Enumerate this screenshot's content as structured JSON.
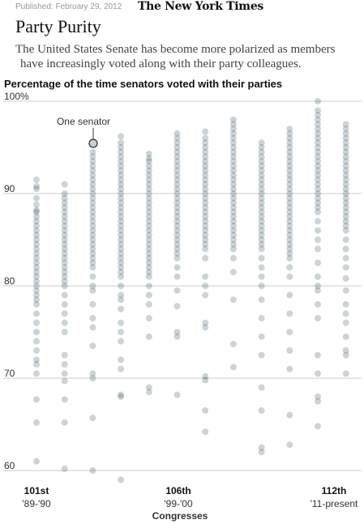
{
  "header": {
    "published": "Published: February 29, 2012",
    "masthead": "The New York Times"
  },
  "headline": "Party Purity",
  "description": {
    "line1": "The United States Senate has become more polarized as members",
    "line2": "have increasingly voted along  with their party colleagues."
  },
  "chart_title": "Percentage of the time senators voted with their parties",
  "annotation": "One senator",
  "colors": {
    "dot": "#1c3a4a",
    "grid": "#cccccc",
    "text": "#333333"
  },
  "chart_data": {
    "type": "scatter",
    "title": "Percentage of the time senators voted with their parties",
    "xlabel": "Congresses",
    "ylabel": "",
    "y_ticks": [
      "100%",
      "90",
      "80",
      "70",
      "60"
    ],
    "ylim": [
      60,
      100
    ],
    "grid": true,
    "x_labels": [
      {
        "congress": "101st",
        "years": "'89-'90"
      },
      {
        "congress": "106th",
        "years": "'99-'00"
      },
      {
        "congress": "112th",
        "years": "'11-present"
      }
    ],
    "series": [
      {
        "congress": 101,
        "values": [
          91.5,
          90.8,
          90.5,
          89.5,
          88.8,
          88.2,
          88.0,
          87.5,
          87.0,
          86.5,
          86.0,
          85.5,
          85.0,
          84.5,
          84.0,
          83.5,
          83.0,
          82.5,
          82.0,
          81.5,
          81.0,
          80.5,
          80.0,
          79.5,
          79.0,
          78.5,
          78.0,
          77.0,
          76.0,
          75.0,
          74.0,
          73.0,
          72.0,
          71.5,
          70.5,
          67.7,
          65.2,
          61.0
        ]
      },
      {
        "congress": 102,
        "values": [
          91.0,
          90.0,
          89.5,
          89.0,
          88.5,
          88.0,
          87.5,
          87.0,
          86.5,
          86.0,
          85.5,
          85.0,
          84.5,
          84.0,
          83.5,
          83.0,
          82.5,
          82.0,
          81.5,
          81.0,
          80.5,
          80.0,
          79.0,
          78.0,
          77.0,
          76.0,
          75.0,
          72.5,
          71.5,
          70.5,
          69.7,
          67.7,
          65.2,
          60.2
        ]
      },
      {
        "congress": 103,
        "values": [
          95.5,
          94.5,
          94.0,
          93.5,
          93.0,
          92.5,
          92.0,
          91.5,
          91.0,
          90.5,
          90.0,
          89.5,
          89.0,
          88.5,
          88.0,
          87.5,
          87.0,
          86.5,
          86.0,
          85.5,
          85.0,
          84.5,
          84.0,
          83.5,
          83.0,
          82.5,
          82.0,
          81.0,
          80.0,
          79.5,
          78.0,
          76.5,
          75.5,
          73.5,
          70.5,
          70.0,
          65.7,
          60.0
        ]
      },
      {
        "congress": 104,
        "values": [
          96.2,
          95.5,
          95.0,
          94.5,
          94.0,
          93.5,
          93.0,
          92.5,
          92.0,
          91.5,
          91.0,
          90.5,
          90.0,
          89.5,
          89.0,
          88.5,
          88.0,
          87.5,
          87.0,
          86.5,
          86.0,
          85.5,
          85.0,
          84.5,
          84.0,
          83.5,
          83.0,
          82.5,
          82.0,
          81.5,
          81.0,
          80.0,
          79.0,
          78.5,
          77.5,
          76.0,
          75.0,
          74.0,
          72.0,
          71.0,
          68.2,
          68.0,
          59.0
        ]
      },
      {
        "congress": 105,
        "values": [
          94.3,
          93.8,
          93.5,
          93.0,
          92.5,
          92.0,
          91.5,
          91.0,
          90.5,
          90.0,
          89.5,
          89.0,
          88.5,
          88.0,
          87.5,
          87.0,
          86.5,
          86.0,
          85.5,
          85.0,
          84.5,
          84.0,
          83.5,
          83.0,
          82.5,
          82.0,
          81.5,
          81.0,
          80.0,
          79.0,
          78.0,
          76.5,
          74.5,
          69.0,
          68.5
        ]
      },
      {
        "congress": 106,
        "values": [
          96.5,
          96.0,
          95.5,
          95.0,
          94.5,
          94.0,
          93.5,
          93.0,
          92.5,
          92.0,
          91.5,
          91.0,
          90.5,
          90.0,
          89.5,
          89.0,
          88.5,
          88.0,
          87.5,
          87.0,
          86.5,
          86.0,
          85.5,
          85.0,
          84.5,
          84.0,
          83.5,
          83.0,
          82.0,
          81.0,
          79.5,
          77.8,
          75.0,
          74.5,
          68.2
        ]
      },
      {
        "congress": 107,
        "values": [
          96.7,
          96.0,
          95.5,
          95.0,
          94.5,
          94.0,
          93.5,
          93.0,
          92.5,
          92.0,
          91.5,
          91.0,
          90.5,
          90.0,
          89.5,
          89.0,
          88.5,
          88.0,
          87.5,
          87.0,
          86.5,
          86.0,
          85.5,
          85.0,
          84.5,
          84.0,
          83.0,
          81.0,
          80.0,
          79.0,
          76.0,
          75.5,
          70.2,
          69.8,
          66.5,
          64.2
        ]
      },
      {
        "congress": 108,
        "values": [
          98.0,
          97.5,
          97.0,
          96.5,
          96.0,
          95.5,
          95.0,
          94.5,
          94.0,
          93.5,
          93.0,
          92.5,
          92.0,
          91.5,
          91.0,
          90.5,
          90.0,
          89.5,
          89.0,
          88.5,
          88.0,
          87.5,
          87.0,
          86.5,
          86.0,
          85.5,
          85.0,
          84.5,
          84.0,
          83.0,
          81.5,
          78.5,
          73.7,
          71.2
        ]
      },
      {
        "congress": 109,
        "values": [
          95.5,
          95.0,
          94.5,
          94.0,
          93.5,
          93.0,
          92.5,
          92.0,
          91.5,
          91.0,
          90.5,
          90.0,
          89.5,
          89.0,
          88.5,
          88.0,
          87.5,
          87.0,
          86.5,
          86.0,
          85.5,
          85.0,
          84.5,
          84.0,
          83.0,
          82.0,
          81.0,
          80.0,
          78.5,
          76.5,
          74.5,
          72.5,
          69.0,
          66.5,
          62.5,
          62.0
        ]
      },
      {
        "congress": 110,
        "values": [
          97.0,
          96.5,
          96.0,
          95.5,
          95.0,
          94.5,
          94.0,
          93.5,
          93.0,
          92.5,
          92.0,
          91.5,
          91.0,
          90.5,
          90.0,
          89.5,
          89.0,
          88.5,
          88.0,
          87.5,
          87.0,
          86.5,
          86.0,
          85.5,
          85.0,
          84.5,
          84.0,
          83.5,
          83.0,
          82.0,
          81.0,
          79.0,
          77.0,
          75.0,
          73.0,
          71.0,
          66.0,
          62.8
        ]
      },
      {
        "congress": 111,
        "values": [
          100.0,
          99.0,
          98.5,
          98.0,
          97.5,
          97.0,
          96.5,
          96.0,
          95.5,
          95.0,
          94.5,
          94.0,
          93.5,
          93.0,
          92.5,
          92.0,
          91.5,
          91.0,
          90.5,
          90.0,
          89.5,
          89.0,
          88.5,
          88.0,
          87.0,
          86.0,
          85.0,
          84.0,
          82.5,
          81.0,
          80.0,
          79.5,
          78.0,
          76.5,
          72.5,
          70.5,
          68.0,
          67.5,
          64.8
        ]
      },
      {
        "congress": 112,
        "values": [
          97.5,
          97.0,
          96.5,
          96.0,
          95.5,
          95.0,
          94.5,
          94.0,
          93.5,
          93.0,
          92.5,
          92.0,
          91.5,
          91.0,
          90.5,
          90.0,
          89.5,
          89.0,
          88.5,
          88.0,
          87.5,
          87.0,
          86.5,
          86.0,
          85.0,
          84.0,
          83.0,
          82.0,
          80.8,
          79.5,
          78.0,
          77.0,
          76.0,
          74.5,
          73.0,
          72.5,
          70.5
        ]
      }
    ]
  }
}
